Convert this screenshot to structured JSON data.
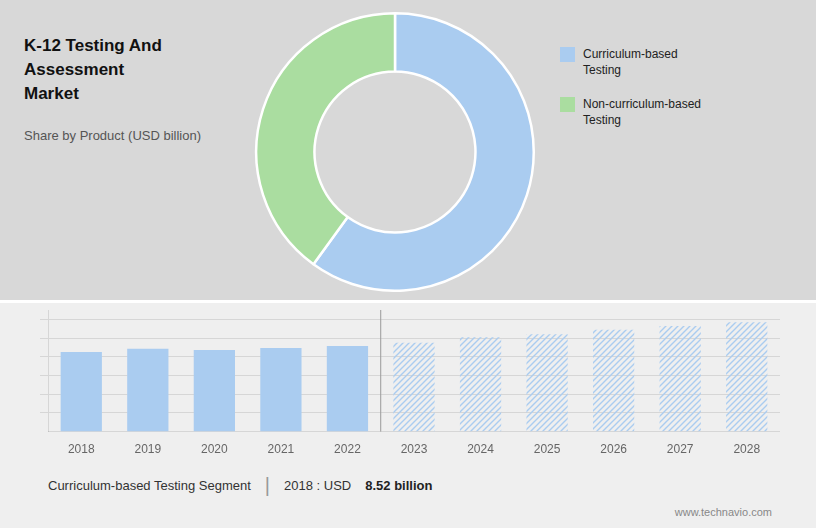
{
  "chart_data": [
    {
      "type": "doughnut",
      "title": [
        "K-12 Testing And Assessment",
        "Market"
      ],
      "subtitle": "Share by Product (USD billion)",
      "categories": [
        "Curriculum-based\nTesting",
        "Non-curriculum-based\nTesting"
      ],
      "values": [
        60,
        40
      ],
      "colors": [
        "#aaccf0",
        "#aadda0"
      ],
      "legend": "right"
    },
    {
      "type": "bar",
      "categories": [
        2018,
        2019,
        2020,
        2021,
        2022,
        2023,
        2024,
        2025,
        2026,
        2027,
        2028
      ],
      "series": [
        {
          "values": [
            8.52,
            8.85,
            8.72,
            8.95,
            9.15,
            null,
            null,
            null,
            null,
            null,
            null
          ],
          "color": "#aaccf0"
        },
        {
          "values": [
            null,
            null,
            null,
            null,
            null,
            9.5,
            10.1,
            10.4,
            10.9,
            11.3,
            11.7
          ],
          "color": "#aaccf0"
        }
      ],
      "ylim": [
        0,
        13
      ],
      "yticks": [
        2,
        4,
        6,
        8,
        10,
        12
      ],
      "grid": true,
      "tick_labels": "x",
      "annotations": [
        "Curriculum-based Testing Segment",
        "|",
        "2018 : USD",
        "8.52 billion",
        "www.technavio.com"
      ]
    }
  ]
}
